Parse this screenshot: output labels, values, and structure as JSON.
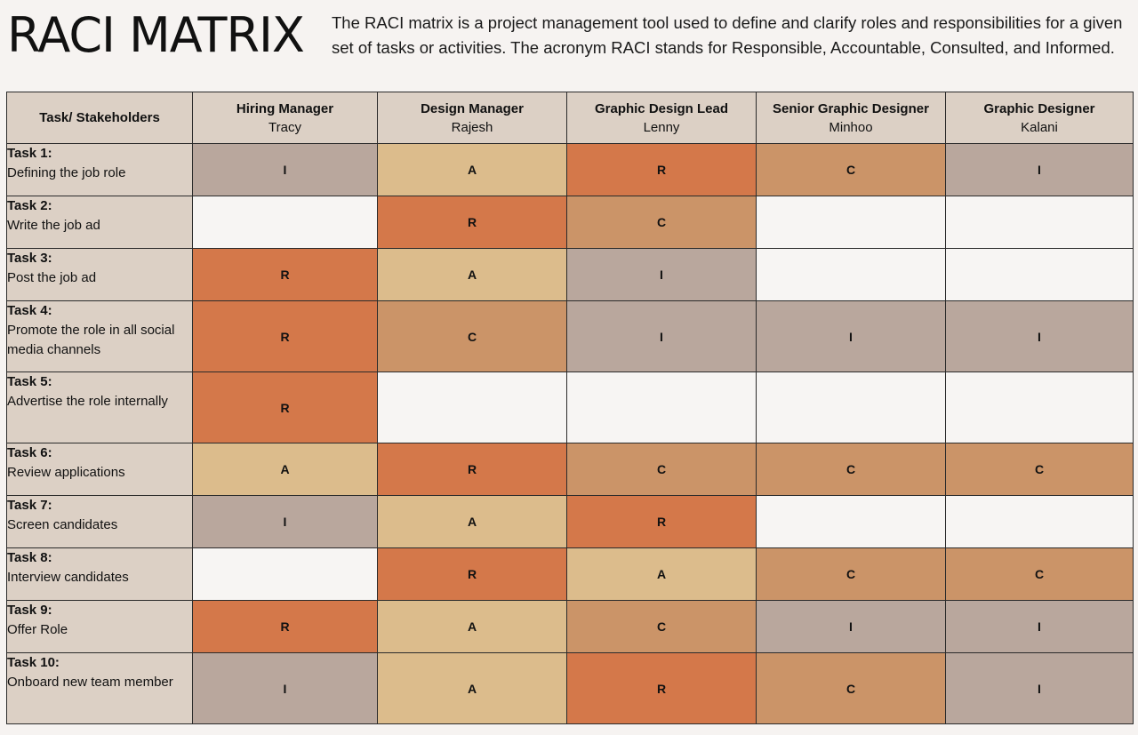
{
  "header": {
    "title": "RACI MATRIX",
    "description": "The RACI matrix is a project management tool used to define and clarify roles and responsibilities for a given set of tasks or activities. The acronym RACI stands for Responsible, Accountable, Consulted, and Informed."
  },
  "table": {
    "corner_label": "Task/ Stakeholders",
    "stakeholders": [
      {
        "role": "Hiring Manager",
        "name": "Tracy"
      },
      {
        "role": "Design Manager",
        "name": "Rajesh"
      },
      {
        "role": "Graphic Design Lead",
        "name": "Lenny"
      },
      {
        "role": "Senior Graphic Designer",
        "name": "Minhoo"
      },
      {
        "role": "Graphic Designer",
        "name": "Kalani"
      }
    ],
    "colors": {
      "R": "#d4784a",
      "A": "#dcbc8c",
      "C": "#cb9468",
      "I": "#b9a79d",
      "empty": "#f7f5f3",
      "header": "#dcd0c5"
    },
    "tasks": [
      {
        "number": "Task 1:",
        "name": "Defining the job role",
        "cells": [
          "I",
          "A",
          "R",
          "C",
          "I"
        ]
      },
      {
        "number": "Task 2:",
        "name": "Write the job ad",
        "cells": [
          "",
          "R",
          "C",
          "",
          ""
        ]
      },
      {
        "number": "Task 3:",
        "name": "Post the job ad",
        "cells": [
          "R",
          "A",
          "I",
          "",
          ""
        ]
      },
      {
        "number": "Task 4:",
        "name": "Promote the role in all social media channels",
        "cells": [
          "R",
          "C",
          "I",
          "I",
          "I"
        ]
      },
      {
        "number": "Task 5:",
        "name": "Advertise the role internally",
        "cells": [
          "R",
          "",
          "",
          "",
          ""
        ]
      },
      {
        "number": "Task 6:",
        "name": "Review applications",
        "cells": [
          "A",
          "R",
          "C",
          "C",
          "C"
        ]
      },
      {
        "number": "Task 7:",
        "name": "Screen candidates",
        "cells": [
          "I",
          "A",
          "R",
          "",
          ""
        ]
      },
      {
        "number": "Task 8:",
        "name": "Interview candidates",
        "cells": [
          "",
          "R",
          "A",
          "C",
          "C"
        ]
      },
      {
        "number": "Task 9:",
        "name": "Offer Role",
        "cells": [
          "R",
          "A",
          "C",
          "I",
          "I"
        ]
      },
      {
        "number": "Task 10:",
        "name": "Onboard new team member",
        "cells": [
          "I",
          "A",
          "R",
          "C",
          "I"
        ]
      }
    ]
  }
}
